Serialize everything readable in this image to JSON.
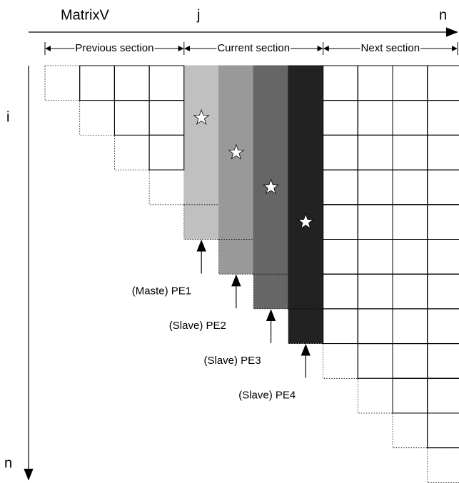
{
  "header": {
    "title": "MatrixV",
    "column_index": "j",
    "column_end": "n"
  },
  "row_axis": {
    "index": "i",
    "end": "n"
  },
  "sections": [
    "Previous section",
    "Current section",
    "Next section"
  ],
  "processors": [
    "(Maste) PE1",
    "(Slave) PE2",
    "(Slave) PE3",
    "(Slave) PE4"
  ]
}
